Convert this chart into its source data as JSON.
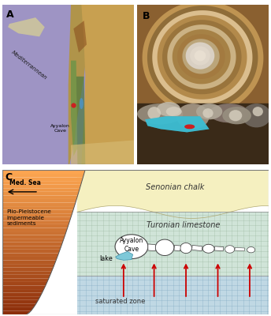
{
  "panel_c": {
    "senonian_chalk_color": "#f5f0c0",
    "turonian_limestone_color": "#d0e4d8",
    "saturated_zone_color": "#c0d8e4",
    "lake_color": "#7ec8d8",
    "arrow_color": "#cc0000",
    "text_senonian": "Senonian chalk",
    "text_turonian": "Turonian limestone",
    "text_plio": "Plio-Pleistocene\nimpermeable\nsediments",
    "text_med_sea": "Med. Sea",
    "text_cave": "Ayyalon\nCave",
    "text_lake": "lake",
    "text_saturated": "saturated zone"
  },
  "figure_bg": "#ffffff"
}
